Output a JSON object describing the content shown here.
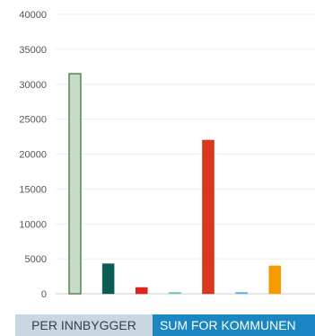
{
  "chart_data": {
    "type": "bar",
    "title": "",
    "xlabel": "",
    "ylabel": "",
    "ylim": [
      0,
      40000
    ],
    "yticks": [
      0,
      5000,
      10000,
      15000,
      20000,
      25000,
      30000,
      35000,
      40000
    ],
    "grid": true,
    "legend": "none",
    "categories": [
      "",
      "",
      "",
      "",
      "",
      "",
      "",
      ""
    ],
    "values": [
      31500,
      4300,
      900,
      120,
      22000,
      120,
      4000,
      0
    ],
    "colors": [
      "#c6dcc7",
      "#0d5b55",
      "#e2231a",
      "#6bc4c6",
      "#d9381e",
      "#5bb0d8",
      "#f49b00",
      "#ffffff"
    ],
    "borders": [
      "#4e8a55",
      "#0d5b55",
      "#c41a12",
      "#6bc4c6",
      "#b52a12",
      "#5bb0d8",
      "#f49b00",
      "#ffffff"
    ]
  },
  "tabs": [
    {
      "label": "PER INNBYGGER",
      "active": false
    },
    {
      "label": "SUM FOR KOMMUNEN",
      "active": true
    }
  ]
}
